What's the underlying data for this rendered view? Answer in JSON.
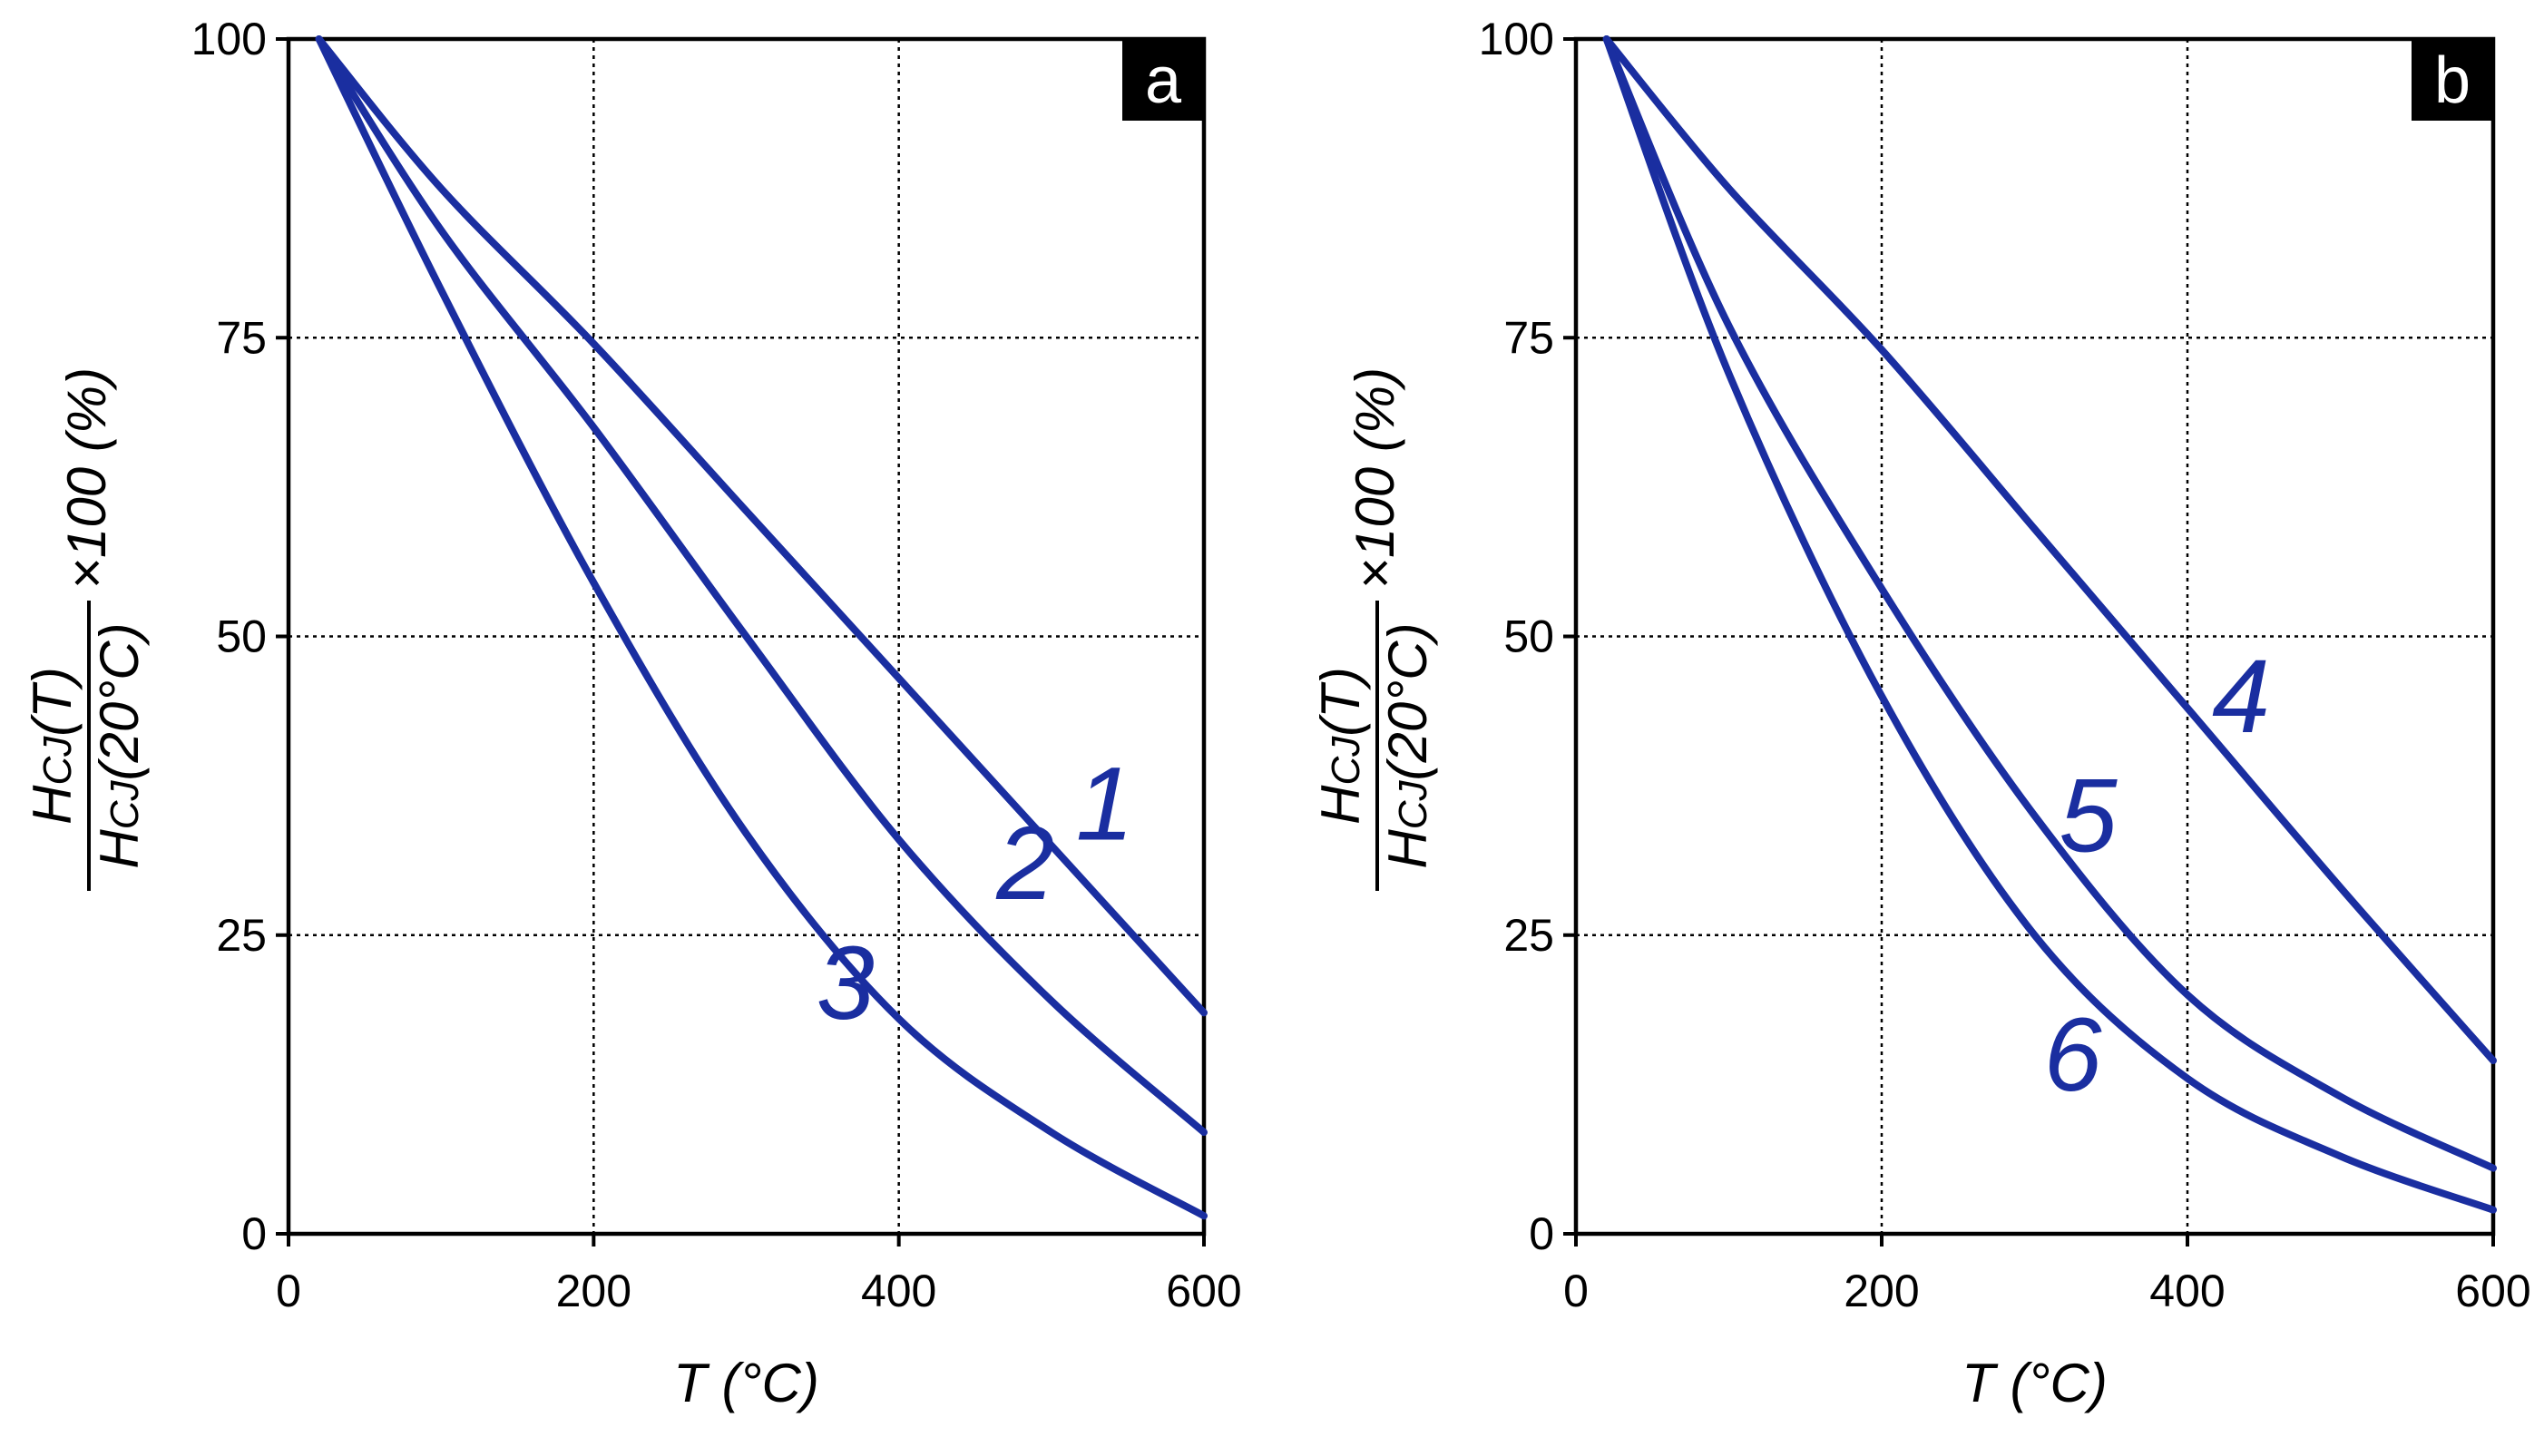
{
  "colors": {
    "curve": "#1a2ea0",
    "grid": "#000000",
    "axis": "#000000",
    "tag_bg": "#000000"
  },
  "chart_data": [
    {
      "type": "line",
      "panel_label": "a",
      "xlabel": "T (°C)",
      "ylabel": {
        "num_main": "H",
        "num_sub": "CJ",
        "num_arg": "(T)",
        "den_main": "H",
        "den_sub": "CJ",
        "den_arg": "(20°C)",
        "suffix": "×100 (%)"
      },
      "xlim": [
        0,
        600
      ],
      "ylim": [
        0,
        100
      ],
      "xticks": [
        0,
        200,
        400,
        600
      ],
      "xtick_labels": [
        "0",
        "200",
        "400",
        "600"
      ],
      "yticks": [
        0,
        25,
        50,
        75,
        100
      ],
      "ytick_labels": [
        "0",
        "25",
        "50",
        "75",
        "100"
      ],
      "grid": true,
      "series": [
        {
          "name": "1",
          "x": [
            20,
            100,
            200,
            300,
            400,
            500,
            600
          ],
          "y": [
            100,
            87.5,
            74.5,
            60.5,
            46.5,
            32.5,
            18.5
          ]
        },
        {
          "name": "2",
          "x": [
            20,
            100,
            200,
            300,
            400,
            500,
            600
          ],
          "y": [
            100,
            84,
            67.5,
            50,
            33,
            19.5,
            8.5
          ]
        },
        {
          "name": "3",
          "x": [
            20,
            100,
            200,
            300,
            400,
            500,
            600
          ],
          "y": [
            100,
            79,
            54.5,
            33.5,
            18,
            8.5,
            1.5
          ]
        }
      ],
      "annotations": [
        {
          "text": "1",
          "x": 535,
          "y": 33
        },
        {
          "text": "2",
          "x": 483,
          "y": 28
        },
        {
          "text": "3",
          "x": 365,
          "y": 18
        }
      ]
    },
    {
      "type": "line",
      "panel_label": "b",
      "xlabel": "T (°C)",
      "ylabel": {
        "num_main": "H",
        "num_sub": "CJ",
        "num_arg": "(T)",
        "den_main": "H",
        "den_sub": "CJ",
        "den_arg": "(20°C)",
        "suffix": "×100 (%)"
      },
      "xlim": [
        0,
        600
      ],
      "ylim": [
        0,
        100
      ],
      "xticks": [
        0,
        200,
        400,
        600
      ],
      "xtick_labels": [
        "0",
        "200",
        "400",
        "600"
      ],
      "yticks": [
        0,
        25,
        50,
        75,
        100
      ],
      "ytick_labels": [
        "0",
        "25",
        "50",
        "75",
        "100"
      ],
      "grid": true,
      "series": [
        {
          "name": "4",
          "x": [
            20,
            100,
            200,
            300,
            400,
            500,
            600
          ],
          "y": [
            100,
            87.5,
            74,
            59,
            44,
            29,
            14.5
          ]
        },
        {
          "name": "5",
          "x": [
            20,
            100,
            200,
            300,
            400,
            500,
            600
          ],
          "y": [
            100,
            76,
            54,
            35,
            20,
            11.5,
            5.5
          ]
        },
        {
          "name": "6",
          "x": [
            20,
            100,
            200,
            300,
            400,
            500,
            600
          ],
          "y": [
            100,
            72,
            45,
            25,
            13,
            6.5,
            2
          ]
        }
      ],
      "annotations": [
        {
          "text": "4",
          "x": 435,
          "y": 42
        },
        {
          "text": "5",
          "x": 335,
          "y": 32
        },
        {
          "text": "6",
          "x": 325,
          "y": 12
        }
      ]
    }
  ]
}
